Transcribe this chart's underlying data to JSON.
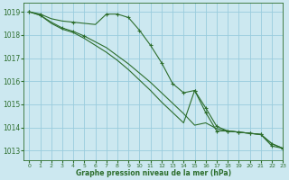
{
  "title": "Graphe pression niveau de la mer (hPa)",
  "bg_color": "#cce8f0",
  "grid_color": "#99ccdd",
  "line_color": "#2d6e2d",
  "marker_color": "#2d6e2d",
  "xlim": [
    -0.5,
    23
  ],
  "ylim": [
    1012.6,
    1019.4
  ],
  "yticks": [
    1013,
    1014,
    1015,
    1016,
    1017,
    1018,
    1019
  ],
  "xticks": [
    0,
    1,
    2,
    3,
    4,
    5,
    6,
    7,
    8,
    9,
    10,
    11,
    12,
    13,
    14,
    15,
    16,
    17,
    18,
    19,
    20,
    21,
    22,
    23
  ],
  "series": [
    {
      "y": [
        1019.0,
        1018.9,
        1018.7,
        1018.6,
        1018.55,
        1018.5,
        1018.45,
        1018.9,
        1018.9,
        1018.75,
        1018.2,
        1017.55,
        1016.8,
        1015.9,
        1015.5,
        1015.6,
        1014.65,
        1013.85,
        1013.85,
        1013.8,
        1013.75,
        1013.7,
        1013.2,
        1013.1
      ],
      "markers": [
        0,
        1,
        4,
        7,
        8,
        9,
        10,
        11,
        12,
        13,
        14,
        15,
        16,
        17,
        18,
        19,
        20,
        21,
        22,
        23
      ]
    },
    {
      "y": [
        1019.0,
        1018.85,
        1018.55,
        1018.3,
        1018.15,
        1017.95,
        1017.7,
        1017.45,
        1017.1,
        1016.75,
        1016.35,
        1015.95,
        1015.5,
        1015.05,
        1014.6,
        1014.1,
        1014.2,
        1013.95,
        1013.85,
        1013.8,
        1013.75,
        1013.7,
        1013.3,
        1013.1
      ],
      "markers": [
        0,
        1,
        3,
        4,
        5
      ]
    },
    {
      "y": [
        1019.0,
        1018.85,
        1018.5,
        1018.25,
        1018.1,
        1017.85,
        1017.55,
        1017.25,
        1016.9,
        1016.5,
        1016.05,
        1015.6,
        1015.1,
        1014.65,
        1014.2,
        1015.6,
        1014.85,
        1014.05,
        1013.85,
        1013.8,
        1013.75,
        1013.7,
        1013.3,
        1013.1
      ],
      "markers": [
        15,
        16,
        17,
        18,
        19,
        20,
        21,
        22,
        23
      ]
    }
  ]
}
